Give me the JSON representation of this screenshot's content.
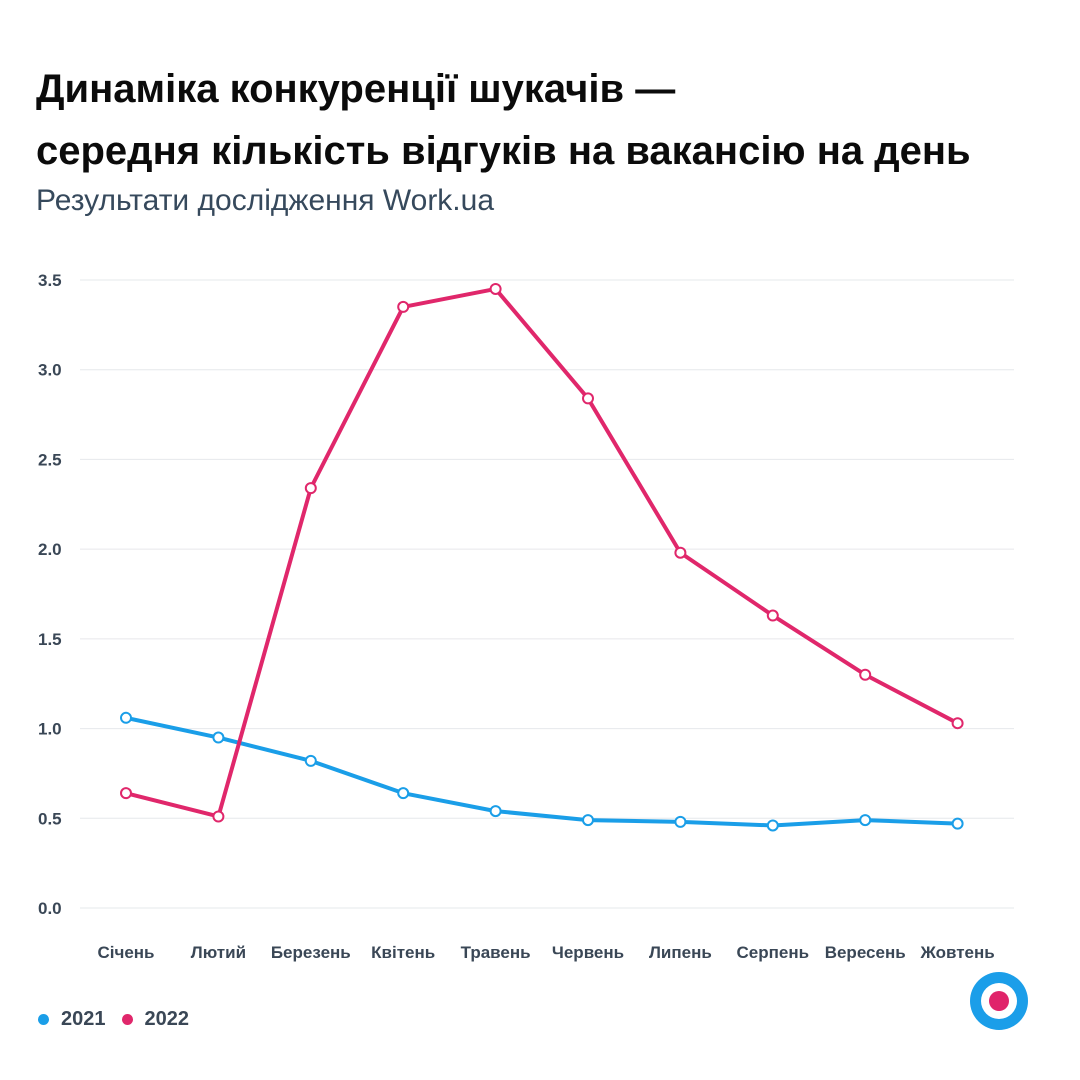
{
  "header": {
    "title_line1": "Динаміка конкуренції шукачів —",
    "title_line2": "середня кількість відгуків на вакансію на день",
    "subtitle": "Результати дослідження Work.ua"
  },
  "chart_data": {
    "type": "line",
    "title": "Динаміка конкуренції шукачів — середня кількість відгуків на вакансію на день",
    "subtitle": "Результати дослідження Work.ua",
    "xlabel": "",
    "ylabel": "",
    "categories": [
      "Січень",
      "Лютий",
      "Березень",
      "Квітень",
      "Травень",
      "Червень",
      "Липень",
      "Серпень",
      "Вересень",
      "Жовтень"
    ],
    "series": [
      {
        "name": "2021",
        "color": "#1a9ee8",
        "values": [
          1.06,
          0.95,
          0.82,
          0.64,
          0.54,
          0.49,
          0.48,
          0.46,
          0.49,
          0.47
        ]
      },
      {
        "name": "2022",
        "color": "#e0276b",
        "values": [
          0.64,
          0.51,
          2.34,
          3.35,
          3.45,
          2.84,
          1.98,
          1.63,
          1.3,
          1.03
        ]
      }
    ],
    "yticks": [
      "0.0",
      "0.5",
      "1.0",
      "1.5",
      "2.0",
      "2.5",
      "3.0",
      "3.5"
    ],
    "ylim": [
      0,
      3.5
    ],
    "grid": true,
    "legend_position": "bottom-left"
  },
  "legend": {
    "items": [
      {
        "label": "2021",
        "color": "#1a9ee8"
      },
      {
        "label": "2022",
        "color": "#e0276b"
      }
    ]
  },
  "logo": {
    "icon": "work-ua-logo-icon"
  }
}
